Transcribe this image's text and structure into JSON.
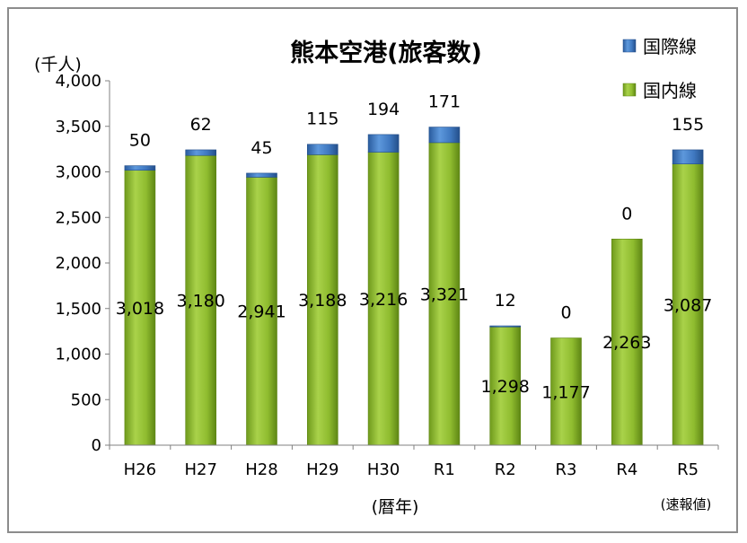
{
  "chart_data": {
    "type": "bar",
    "stacked": true,
    "title": "熊本空港(旅客数)",
    "unit_label": "(千人)",
    "xlabel": "(暦年)",
    "ylim": [
      0,
      4000
    ],
    "yticks": [
      0,
      500,
      1000,
      1500,
      2000,
      2500,
      3000,
      3500,
      4000
    ],
    "ytick_labels": [
      "0",
      "500",
      "1,000",
      "1,500",
      "2,000",
      "2,500",
      "3,000",
      "3,500",
      "4,000"
    ],
    "categories": [
      "H26",
      "H27",
      "H28",
      "H29",
      "H30",
      "R1",
      "R2",
      "R3",
      "R4",
      "R5"
    ],
    "last_category_note": "(速報値)",
    "grid": false,
    "legend_position": "top-right",
    "series": [
      {
        "name": "国内線",
        "color": "#8fbc2f",
        "values": [
          3018,
          3180,
          2941,
          3188,
          3216,
          3321,
          1298,
          1177,
          2263,
          3087
        ],
        "value_labels": [
          "3,018",
          "3,180",
          "2,941",
          "3,188",
          "3,216",
          "3,321",
          "1,298",
          "1,177",
          "2,263",
          "3,087"
        ]
      },
      {
        "name": "国際線",
        "color": "#3f78c0",
        "values": [
          50,
          62,
          45,
          115,
          194,
          171,
          12,
          0,
          0,
          155
        ],
        "value_labels": [
          "50",
          "62",
          "45",
          "115",
          "194",
          "171",
          "12",
          "0",
          "0",
          "155"
        ]
      }
    ]
  }
}
